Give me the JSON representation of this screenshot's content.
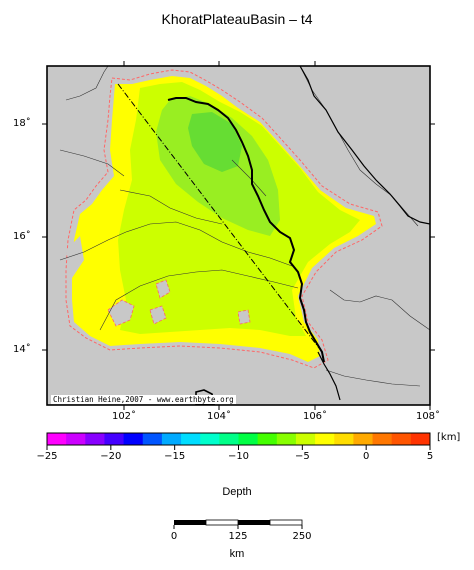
{
  "title": "KhoratPlateauBasin – t4",
  "credit": "Christian Heine,2007 - www.earthbyte.org",
  "map": {
    "lon_ticks": [
      "102˚",
      "104˚",
      "106˚",
      "108˚"
    ],
    "lat_ticks": [
      "18˚",
      "16˚",
      "14˚"
    ],
    "colors": {
      "land": "#c8c8c8",
      "basin_yellow": "#ffff00",
      "basin_lime": "#ccff00",
      "basin_green": "#99ee22",
      "basin_dark_green": "#66dd33",
      "outline": "#ff6666"
    }
  },
  "colorbar": {
    "unit": "[km]",
    "label": "Depth",
    "ticks": [
      "−25",
      "−20",
      "−15",
      "−10",
      "−5",
      "0",
      "5"
    ],
    "min": -25,
    "max": 5,
    "colors": [
      "#ff00ff",
      "#cc00ff",
      "#8800ff",
      "#4400ff",
      "#0000ff",
      "#0055ff",
      "#00aaff",
      "#00ddff",
      "#00ffcc",
      "#00ff88",
      "#00ff44",
      "#44ff00",
      "#88ff00",
      "#ccff00",
      "#ffff00",
      "#ffdd00",
      "#ffaa00",
      "#ff7700",
      "#ff5500",
      "#ff3300"
    ]
  },
  "scalebar": {
    "ticks": [
      "0",
      "125",
      "250"
    ],
    "unit": "km"
  }
}
